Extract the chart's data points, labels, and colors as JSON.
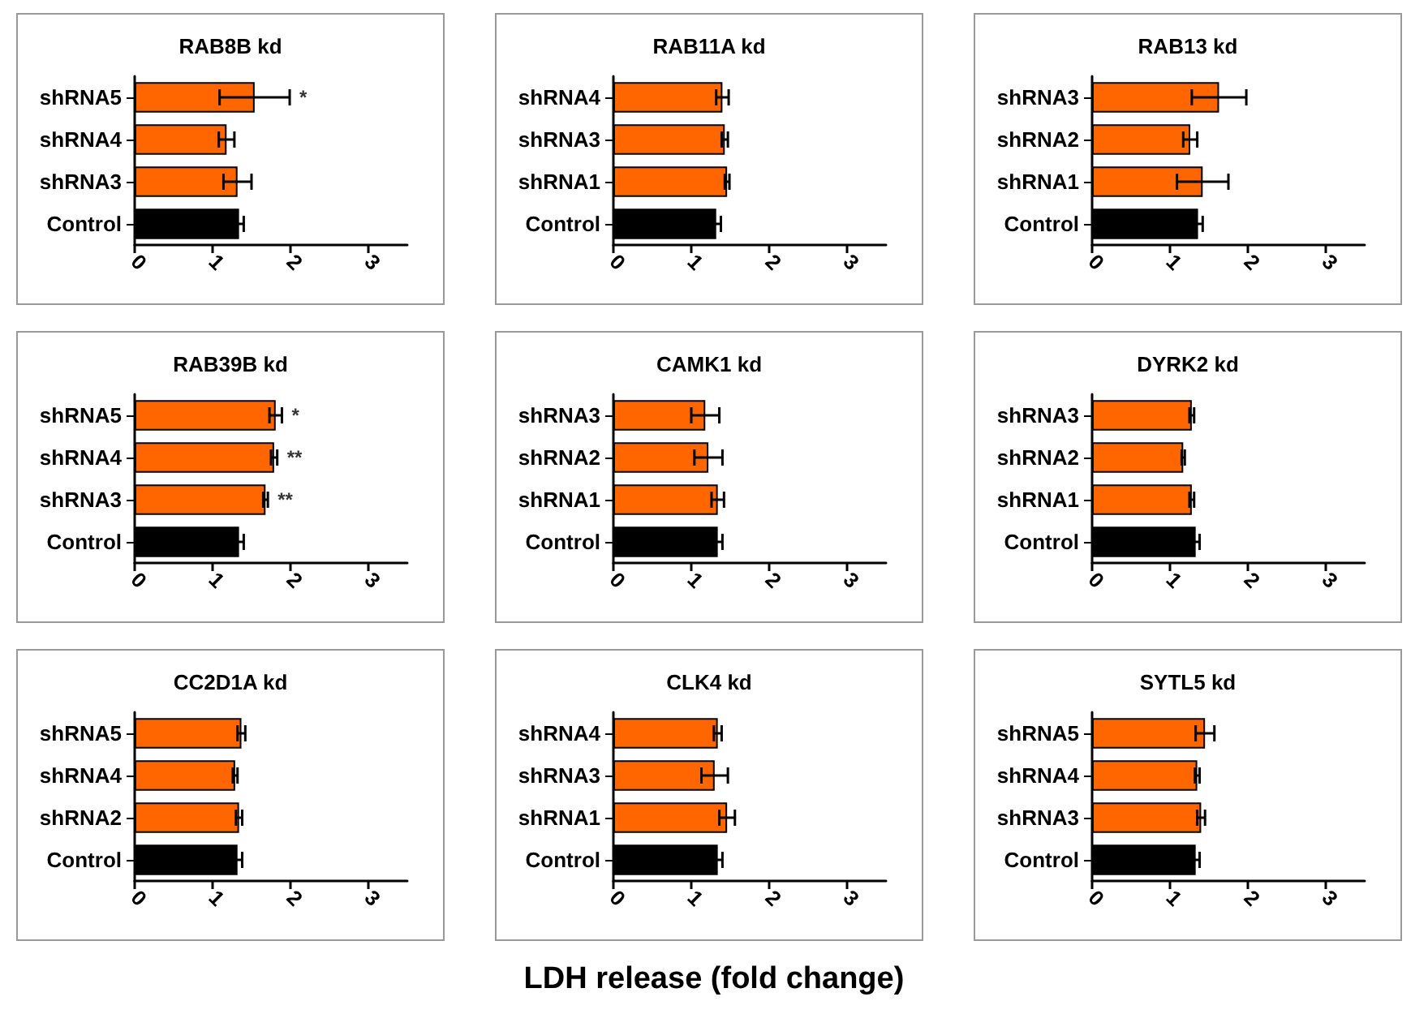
{
  "chart_data": [
    {
      "type": "bar",
      "orientation": "horizontal",
      "title": "RAB8B kd",
      "categories": [
        "shRNA5",
        "shRNA4",
        "shRNA3",
        "Control"
      ],
      "values": [
        1.54,
        1.18,
        1.32,
        1.34
      ],
      "errors": [
        0.45,
        0.1,
        0.18,
        0.06
      ],
      "colors": [
        "#ff6600",
        "#ff6600",
        "#ff6600",
        "#000000"
      ],
      "xlim": [
        0,
        3.5
      ],
      "xticks": [
        0,
        1,
        2,
        3
      ],
      "grid": false,
      "annotations": [
        {
          "text": "*",
          "x": 1.54,
          "y": "shRNA5"
        }
      ]
    },
    {
      "type": "bar",
      "orientation": "horizontal",
      "title": "RAB11A kd",
      "categories": [
        "shRNA4",
        "shRNA3",
        "shRNA1",
        "Control"
      ],
      "values": [
        1.4,
        1.43,
        1.46,
        1.32
      ],
      "errors": [
        0.08,
        0.04,
        0.03,
        0.06
      ],
      "colors": [
        "#ff6600",
        "#ff6600",
        "#ff6600",
        "#000000"
      ],
      "xlim": [
        0,
        3.5
      ],
      "xticks": [
        0,
        1,
        2,
        3
      ],
      "grid": false
    },
    {
      "type": "bar",
      "orientation": "horizontal",
      "title": "RAB13 kd",
      "categories": [
        "shRNA3",
        "shRNA2",
        "shRNA1",
        "Control"
      ],
      "values": [
        1.63,
        1.26,
        1.42,
        1.36
      ],
      "errors": [
        0.35,
        0.09,
        0.33,
        0.06
      ],
      "colors": [
        "#ff6600",
        "#ff6600",
        "#ff6600",
        "#000000"
      ],
      "xlim": [
        0,
        3.5
      ],
      "xticks": [
        0,
        1,
        2,
        3
      ],
      "grid": false
    },
    {
      "type": "bar",
      "orientation": "horizontal",
      "title": "RAB39B kd",
      "categories": [
        "shRNA5",
        "shRNA4",
        "shRNA3",
        "Control"
      ],
      "values": [
        1.81,
        1.79,
        1.68,
        1.34
      ],
      "errors": [
        0.08,
        0.04,
        0.03,
        0.06
      ],
      "colors": [
        "#ff6600",
        "#ff6600",
        "#ff6600",
        "#000000"
      ],
      "xlim": [
        0,
        3.5
      ],
      "xticks": [
        0,
        1,
        2,
        3
      ],
      "grid": false,
      "annotations": [
        {
          "text": "*",
          "x": 1.81,
          "y": "shRNA5"
        },
        {
          "text": "**",
          "x": 1.79,
          "y": "shRNA4"
        },
        {
          "text": "**",
          "x": 1.68,
          "y": "shRNA3"
        }
      ]
    },
    {
      "type": "bar",
      "orientation": "horizontal",
      "title": "CAMK1 kd",
      "categories": [
        "shRNA3",
        "shRNA2",
        "shRNA1",
        "Control"
      ],
      "values": [
        1.18,
        1.22,
        1.34,
        1.34
      ],
      "errors": [
        0.18,
        0.18,
        0.08,
        0.06
      ],
      "colors": [
        "#ff6600",
        "#ff6600",
        "#ff6600",
        "#000000"
      ],
      "xlim": [
        0,
        3.5
      ],
      "xticks": [
        0,
        1,
        2,
        3
      ],
      "grid": false
    },
    {
      "type": "bar",
      "orientation": "horizontal",
      "title": "DYRK2 kd",
      "categories": [
        "shRNA3",
        "shRNA2",
        "shRNA1",
        "Control"
      ],
      "values": [
        1.28,
        1.17,
        1.28,
        1.33
      ],
      "errors": [
        0.03,
        0.02,
        0.03,
        0.05
      ],
      "colors": [
        "#ff6600",
        "#ff6600",
        "#ff6600",
        "#000000"
      ],
      "xlim": [
        0,
        3.5
      ],
      "xticks": [
        0,
        1,
        2,
        3
      ],
      "grid": false
    },
    {
      "type": "bar",
      "orientation": "horizontal",
      "title": "CC2D1A kd",
      "categories": [
        "shRNA5",
        "shRNA4",
        "shRNA2",
        "Control"
      ],
      "values": [
        1.37,
        1.29,
        1.34,
        1.32
      ],
      "errors": [
        0.05,
        0.03,
        0.04,
        0.06
      ],
      "colors": [
        "#ff6600",
        "#ff6600",
        "#ff6600",
        "#000000"
      ],
      "xlim": [
        0,
        3.5
      ],
      "xticks": [
        0,
        1,
        2,
        3
      ],
      "grid": false
    },
    {
      "type": "bar",
      "orientation": "horizontal",
      "title": "CLK4 kd",
      "xlabel": "LDH release (fold change)",
      "categories": [
        "shRNA4",
        "shRNA3",
        "shRNA1",
        "Control"
      ],
      "values": [
        1.34,
        1.3,
        1.46,
        1.34
      ],
      "errors": [
        0.05,
        0.17,
        0.1,
        0.06
      ],
      "colors": [
        "#ff6600",
        "#ff6600",
        "#ff6600",
        "#000000"
      ],
      "xlim": [
        0,
        3.5
      ],
      "xticks": [
        0,
        1,
        2,
        3
      ],
      "grid": false
    },
    {
      "type": "bar",
      "orientation": "horizontal",
      "title": "SYTL5 kd",
      "categories": [
        "shRNA5",
        "shRNA4",
        "shRNA3",
        "Control"
      ],
      "values": [
        1.45,
        1.35,
        1.4,
        1.33
      ],
      "errors": [
        0.12,
        0.03,
        0.05,
        0.05
      ],
      "colors": [
        "#ff6600",
        "#ff6600",
        "#ff6600",
        "#000000"
      ],
      "xlim": [
        0,
        3.5
      ],
      "xticks": [
        0,
        1,
        2,
        3
      ],
      "grid": false
    }
  ]
}
